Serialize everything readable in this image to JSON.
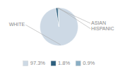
{
  "chart_data": {
    "type": "pie",
    "categories": [
      "WHITE",
      "ASIAN",
      "HISPANIC"
    ],
    "values": [
      97.3,
      1.8,
      0.9
    ],
    "value_labels": [
      "97.3%",
      "1.8%",
      "0.9%"
    ],
    "colors": [
      "#cdd9e5",
      "#2d5f7e",
      "#8aafc5"
    ],
    "legend": "bottom"
  }
}
